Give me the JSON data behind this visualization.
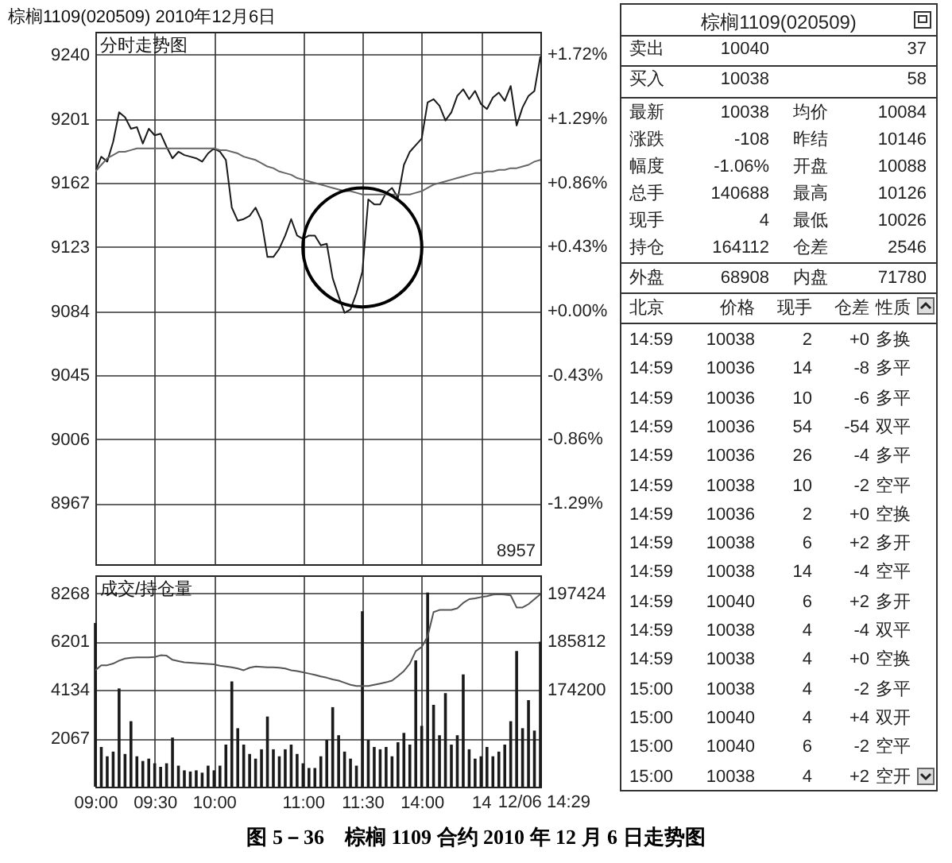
{
  "chart_data": [
    {
      "type": "line",
      "title": "棕榈1109(020509) 2010年12月6日",
      "subtitle": "分时走势图",
      "categories": [
        null,
        null,
        null,
        null,
        null,
        null,
        null,
        null,
        null,
        null,
        null,
        null,
        null,
        null,
        null,
        null,
        null,
        null,
        null,
        null,
        null,
        null,
        null,
        null,
        null,
        null,
        null,
        null,
        null,
        null,
        null,
        null,
        null,
        null,
        null,
        null,
        null,
        null,
        null,
        null,
        null,
        null,
        null,
        null,
        null,
        null,
        null,
        null,
        null,
        null,
        null,
        null,
        null,
        null,
        null,
        null,
        null,
        null,
        null,
        null,
        null,
        null,
        null,
        null,
        null,
        null,
        null,
        null,
        null,
        null,
        null,
        null,
        null,
        null,
        null,
        null
      ],
      "series": [
        {
          "color": "#1a1a1a",
          "values": [
            9169,
            9178,
            9175,
            9187,
            9205,
            9202,
            9195,
            9196,
            9186,
            9195,
            9191,
            9192,
            9184,
            9177,
            9181,
            9179,
            9178,
            9177,
            9175,
            9180,
            9183,
            9181,
            9176,
            9147,
            9139,
            9140,
            9142,
            9147,
            9139,
            9117,
            9117,
            9122,
            9130,
            9140,
            9130,
            9128,
            9130,
            9130,
            9124,
            9125,
            9104,
            9093,
            9083,
            9085,
            9095,
            9108,
            9152,
            9149,
            9149,
            9156,
            9159,
            9153,
            9173,
            9181,
            9185,
            9189,
            9211,
            9213,
            9209,
            9200,
            9205,
            9215,
            9219,
            9213,
            9218,
            9210,
            9207,
            9214,
            9217,
            9212,
            9221,
            9197,
            9208,
            9215,
            9218,
            9239
          ]
        },
        {
          "color": "#666666",
          "values": [
            9169,
            9173,
            9177,
            9179,
            9181,
            9181,
            9182,
            9183,
            9183,
            9183,
            9183,
            9183,
            9183,
            9183,
            9183,
            9183,
            9183,
            9183,
            9183,
            9183,
            9183,
            9182,
            9182,
            9181,
            9180,
            9178,
            9177,
            9176,
            9174,
            9172,
            9171,
            9169,
            9168,
            9167,
            9165,
            9164,
            9163,
            9162,
            9161,
            9160,
            9159,
            9158,
            9157,
            9157,
            9156,
            9155,
            9155,
            9155,
            9155,
            9155,
            9155,
            9155,
            9155,
            9155,
            9156,
            9157,
            9159,
            9161,
            9162,
            9163,
            9164,
            9165,
            9166,
            9167,
            9168,
            9168,
            9169,
            9169,
            9170,
            9170,
            9171,
            9171,
            9172,
            9173,
            9175,
            9176
          ]
        }
      ],
      "ylim": [
        8930,
        9254
      ],
      "yticks": [
        8967,
        9006,
        9045,
        9084,
        9123,
        9162,
        9201,
        9240
      ],
      "y2lim": [
        -1.7,
        1.87
      ],
      "y2ticks": [
        {
          "value": -1.29,
          "label": "-1.29%"
        },
        {
          "value": -0.86,
          "label": "-0.86%"
        },
        {
          "value": -0.43,
          "label": "-0.43%"
        },
        {
          "value": 0,
          "label": "+0.00%"
        },
        {
          "value": 0.43,
          "label": "+0.43%"
        },
        {
          "value": 0.86,
          "label": "+0.86%"
        },
        {
          "value": 1.29,
          "label": "+1.29%"
        },
        {
          "value": 1.72,
          "label": "+1.72%"
        }
      ],
      "grid": true,
      "annotations": [
        "8957",
        "图 5－36　棕榈 1109 合约 2010 年 12 月 6 日走势图"
      ]
    },
    {
      "type": "bar",
      "title": "成交/持仓量",
      "categories": [
        "09:00",
        null,
        null,
        null,
        null,
        null,
        null,
        null,
        null,
        null,
        "09:30",
        null,
        null,
        null,
        null,
        null,
        null,
        null,
        null,
        null,
        "10:00",
        null,
        null,
        null,
        null,
        null,
        null,
        null,
        null,
        null,
        null,
        null,
        null,
        null,
        null,
        "11:00",
        null,
        null,
        null,
        null,
        null,
        null,
        null,
        null,
        null,
        "11:30",
        null,
        null,
        null,
        null,
        null,
        null,
        null,
        null,
        null,
        "14:00",
        null,
        null,
        null,
        null,
        null,
        null,
        null,
        null,
        null,
        "14",
        null,
        null,
        null,
        null,
        null,
        null,
        null,
        null,
        null,
        null
      ],
      "series": [
        {
          "color": "#1a1a1a",
          "values": [
            7000,
            1700,
            1300,
            1500,
            4200,
            1400,
            2800,
            1300,
            1100,
            1200,
            1000,
            850,
            1000,
            2100,
            900,
            700,
            650,
            700,
            600,
            900,
            700,
            900,
            1800,
            4500,
            2500,
            1800,
            1400,
            1200,
            1600,
            3000,
            1600,
            1300,
            1600,
            1800,
            1400,
            1000,
            800,
            800,
            1300,
            2000,
            3400,
            2200,
            1500,
            1200,
            900,
            7500,
            2000,
            1700,
            1600,
            1700,
            1300,
            1900,
            2300,
            1800,
            5400,
            2600,
            8300,
            3500,
            2200,
            4000,
            1800,
            2200,
            4800,
            1600,
            1200,
            1300,
            1700,
            1300,
            1500,
            1800,
            2800,
            5800,
            2500,
            3700,
            2400,
            6200
          ]
        },
        {
          "type": "line",
          "axis": "y2",
          "color": "#555555",
          "values": [
            178900,
            180100,
            180100,
            180500,
            181200,
            181700,
            181900,
            182000,
            182000,
            182000,
            182100,
            182500,
            182400,
            181400,
            181100,
            180800,
            180700,
            180600,
            180500,
            180400,
            180300,
            180000,
            179800,
            179600,
            179300,
            178900,
            179500,
            179800,
            179700,
            179600,
            179600,
            179500,
            179300,
            178900,
            178700,
            178400,
            178100,
            177800,
            177400,
            177100,
            176700,
            176400,
            175900,
            175400,
            175100,
            175100,
            175100,
            175400,
            175700,
            176000,
            176400,
            177500,
            178700,
            180500,
            183500,
            184500,
            187000,
            192900,
            193400,
            193400,
            193400,
            193800,
            195100,
            196000,
            196200,
            196500,
            196700,
            197100,
            197200,
            197100,
            196900,
            194000,
            194000,
            194800,
            196000,
            197200
          ]
        }
      ],
      "ylim": [
        0,
        9035
      ],
      "yticks": [
        2067,
        4134,
        6201,
        8268
      ],
      "y2lim": [
        150880,
        201730
      ],
      "y2ticks": [
        174200,
        185812,
        197424
      ],
      "grid": true,
      "annotations": [
        "12/06 14:29"
      ]
    },
    {
      "type": "other",
      "title": "棕榈1109(020509)",
      "annotations": [
        "卖出",
        "10040",
        "37",
        "买入",
        "10038",
        "58",
        "最新",
        "10038",
        "均价",
        "10084",
        "涨跌",
        "-108",
        "昨结",
        "10146",
        "幅度",
        "-1.06%",
        "开盘",
        "10088",
        "总手",
        "140688",
        "最高",
        "10126",
        "现手",
        "4",
        "最低",
        "10026",
        "持仓",
        "164112",
        "仓差",
        "2546",
        "外盘",
        "68908",
        "内盘",
        "71780",
        "北京",
        "价格",
        "现手",
        "仓差",
        "性质",
        "14:59",
        "10038",
        "2",
        "+0",
        "多换",
        "14:59",
        "10036",
        "14",
        "-8",
        "多平",
        "14:59",
        "10036",
        "10",
        "-6",
        "多平",
        "14:59",
        "10036",
        "54",
        "-54",
        "双平",
        "14:59",
        "10036",
        "26",
        "-4",
        "多平",
        "14:59",
        "10038",
        "10",
        "-2",
        "空平",
        "14:59",
        "10036",
        "2",
        "+0",
        "空换",
        "14:59",
        "10038",
        "6",
        "+2",
        "多开",
        "14:59",
        "10038",
        "14",
        "-4",
        "空平",
        "14:59",
        "10040",
        "6",
        "+2",
        "多开",
        "14:59",
        "10038",
        "4",
        "-4",
        "双平",
        "14:59",
        "10038",
        "4",
        "+0",
        "空换",
        "15:00",
        "10038",
        "4",
        "-2",
        "多平",
        "15:00",
        "10040",
        "4",
        "+4",
        "双开",
        "15:00",
        "10040",
        "6",
        "-2",
        "空平",
        "15:00",
        "10038",
        "4",
        "+2",
        "空开"
      ]
    }
  ]
}
